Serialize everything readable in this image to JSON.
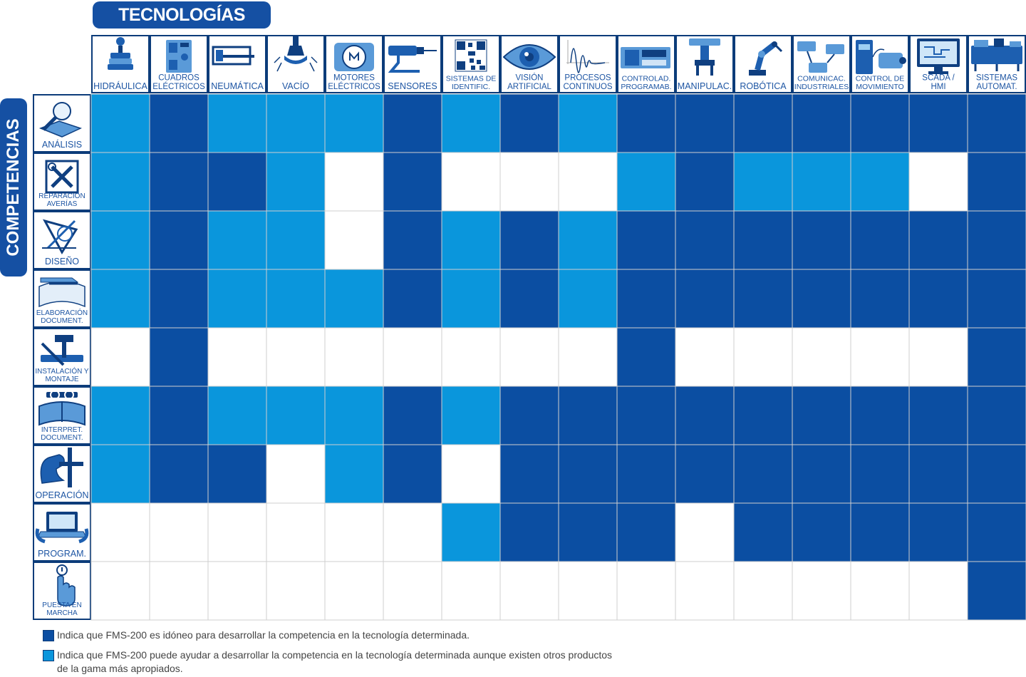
{
  "header": {
    "technologies_title": "TECNOLOGÍAS",
    "competencies_title": "COMPETENCIAS"
  },
  "colors": {
    "dark": "#0b4ea2",
    "light": "#0a96dc",
    "empty": "#ffffff",
    "grid": "#cfcfcf",
    "accent": "#1550a3"
  },
  "technologies": [
    {
      "label": "HIDRÁULICA",
      "icon": "hydraulic-cylinder-icon"
    },
    {
      "label": "CUADROS ELÉCTRICOS",
      "icon": "electrical-panel-icon"
    },
    {
      "label": "NEUMÁTICA",
      "icon": "pneumatic-cylinder-icon"
    },
    {
      "label": "VACÍO",
      "icon": "vacuum-cup-icon"
    },
    {
      "label": "MOTORES ELÉCTRICOS",
      "icon": "electric-motor-icon"
    },
    {
      "label": "SENSORES",
      "icon": "sensor-icon"
    },
    {
      "label": "SISTEMAS DE IDENTIFIC.",
      "icon": "qr-code-icon"
    },
    {
      "label": "VISIÓN ARTIFICIAL",
      "icon": "eye-icon"
    },
    {
      "label": "PROCESOS CONTINUOS",
      "icon": "damped-wave-icon"
    },
    {
      "label": "CONTROLAD. PROGRAMAB.",
      "icon": "plc-icon"
    },
    {
      "label": "MANIPULAC.",
      "icon": "manipulator-icon"
    },
    {
      "label": "ROBÓTICA",
      "icon": "robot-arm-icon"
    },
    {
      "label": "COMUNICAC. INDUSTRIALES",
      "icon": "network-icon"
    },
    {
      "label": "CONTROL DE MOVIMIENTO",
      "icon": "servo-drive-icon"
    },
    {
      "label": "SCADA / HMI",
      "icon": "scada-monitor-icon"
    },
    {
      "label": "SISTEMAS AUTOMAT.",
      "icon": "automation-system-icon"
    }
  ],
  "competencies": [
    {
      "label": "ANÁLISIS",
      "icon": "magnifier-icon"
    },
    {
      "label": "REPARACIÓN AVERÍAS",
      "icon": "tools-icon"
    },
    {
      "label": "DISEÑO",
      "icon": "drafting-icon"
    },
    {
      "label": "ELABORACIÓN DOCUMENT.",
      "icon": "document-pen-icon"
    },
    {
      "label": "INSTALACIÓN Y MONTAJE",
      "icon": "hammer-wrench-icon"
    },
    {
      "label": "INTERPRET. DOCUMENT.",
      "icon": "reading-icon"
    },
    {
      "label": "OPERACIÓN",
      "icon": "hand-operation-icon"
    },
    {
      "label": "PROGRAM.",
      "icon": "laptop-icon"
    },
    {
      "label": "PUESTA EN MARCHA",
      "icon": "power-button-icon"
    }
  ],
  "matrix": [
    [
      "L",
      "D",
      "L",
      "L",
      "L",
      "D",
      "L",
      "D",
      "L",
      "D",
      "D",
      "D",
      "D",
      "D",
      "D",
      "D"
    ],
    [
      "L",
      "D",
      "D",
      "L",
      "E",
      "D",
      "E",
      "E",
      "E",
      "L",
      "D",
      "L",
      "L",
      "L",
      "E",
      "D"
    ],
    [
      "L",
      "D",
      "L",
      "L",
      "E",
      "D",
      "L",
      "D",
      "L",
      "D",
      "D",
      "D",
      "D",
      "D",
      "D",
      "D"
    ],
    [
      "L",
      "D",
      "L",
      "L",
      "L",
      "D",
      "L",
      "D",
      "L",
      "D",
      "D",
      "D",
      "D",
      "D",
      "D",
      "D"
    ],
    [
      "E",
      "D",
      "E",
      "E",
      "E",
      "E",
      "E",
      "E",
      "E",
      "D",
      "E",
      "E",
      "E",
      "E",
      "E",
      "D"
    ],
    [
      "L",
      "D",
      "L",
      "L",
      "L",
      "D",
      "L",
      "D",
      "D",
      "D",
      "D",
      "D",
      "D",
      "D",
      "D",
      "D"
    ],
    [
      "L",
      "D",
      "D",
      "E",
      "L",
      "D",
      "E",
      "D",
      "D",
      "D",
      "D",
      "D",
      "D",
      "D",
      "D",
      "D"
    ],
    [
      "E",
      "E",
      "E",
      "E",
      "E",
      "E",
      "L",
      "D",
      "D",
      "D",
      "E",
      "D",
      "D",
      "D",
      "D",
      "D"
    ],
    [
      "E",
      "E",
      "E",
      "E",
      "E",
      "E",
      "E",
      "E",
      "E",
      "E",
      "E",
      "E",
      "E",
      "E",
      "E",
      "D"
    ]
  ],
  "legend": [
    {
      "key": "D",
      "text": "Indica que FMS-200 es idóneo para desarrollar la competencia en la tecnología determinada."
    },
    {
      "key": "L",
      "text": "Indica que FMS-200 puede ayudar a desarrollar la competencia en la tecnología determinada aunque existen otros productos de la gama más apropiados."
    }
  ]
}
